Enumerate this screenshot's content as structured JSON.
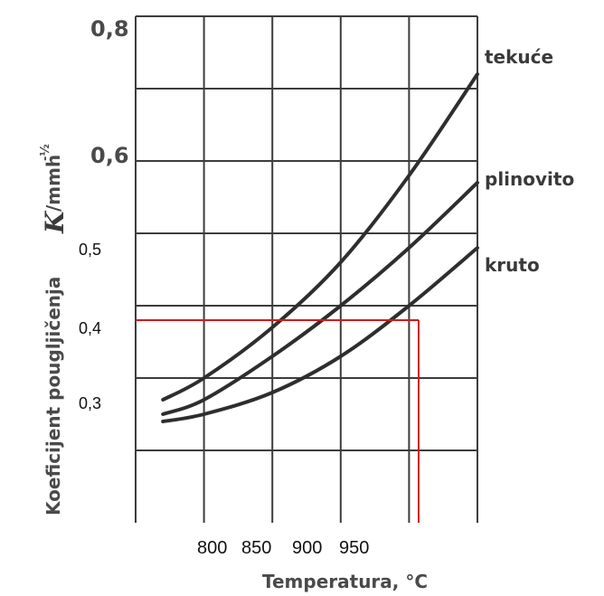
{
  "chart_data": {
    "type": "line",
    "title": "",
    "xlabel": "Temperatura, °C",
    "ylabel": "Koeficijent pougljičenja K/mmh^-1/2",
    "ylabel_parts": {
      "main": "Koeficijent pougljičenja",
      "symbol": "K",
      "unit": "/mmh",
      "exponent": "-½"
    },
    "xlim": [
      750,
      1000
    ],
    "ylim": [
      0.1,
      0.8
    ],
    "x_ticks": [
      "800",
      "850",
      "900",
      "950"
    ],
    "y_ticks_bold": [
      "0,8",
      "0,6"
    ],
    "y_ticks_plain": [
      "0,5",
      "0,4",
      "0,3"
    ],
    "grid": true,
    "series": [
      {
        "name": "tekuće",
        "x": [
          770,
          800,
          850,
          900,
          950,
          1000
        ],
        "y": [
          0.27,
          0.3,
          0.37,
          0.46,
          0.58,
          0.72
        ]
      },
      {
        "name": "plinovito",
        "x": [
          770,
          800,
          850,
          900,
          950,
          1000
        ],
        "y": [
          0.25,
          0.27,
          0.33,
          0.4,
          0.48,
          0.57
        ]
      },
      {
        "name": "kruto",
        "x": [
          770,
          800,
          850,
          900,
          950,
          1000
        ],
        "y": [
          0.24,
          0.25,
          0.28,
          0.33,
          0.4,
          0.48
        ]
      }
    ],
    "reference_lines": {
      "color": "#d11a1a",
      "y_value": 0.38,
      "x_value": 957,
      "x_from": 750
    }
  }
}
